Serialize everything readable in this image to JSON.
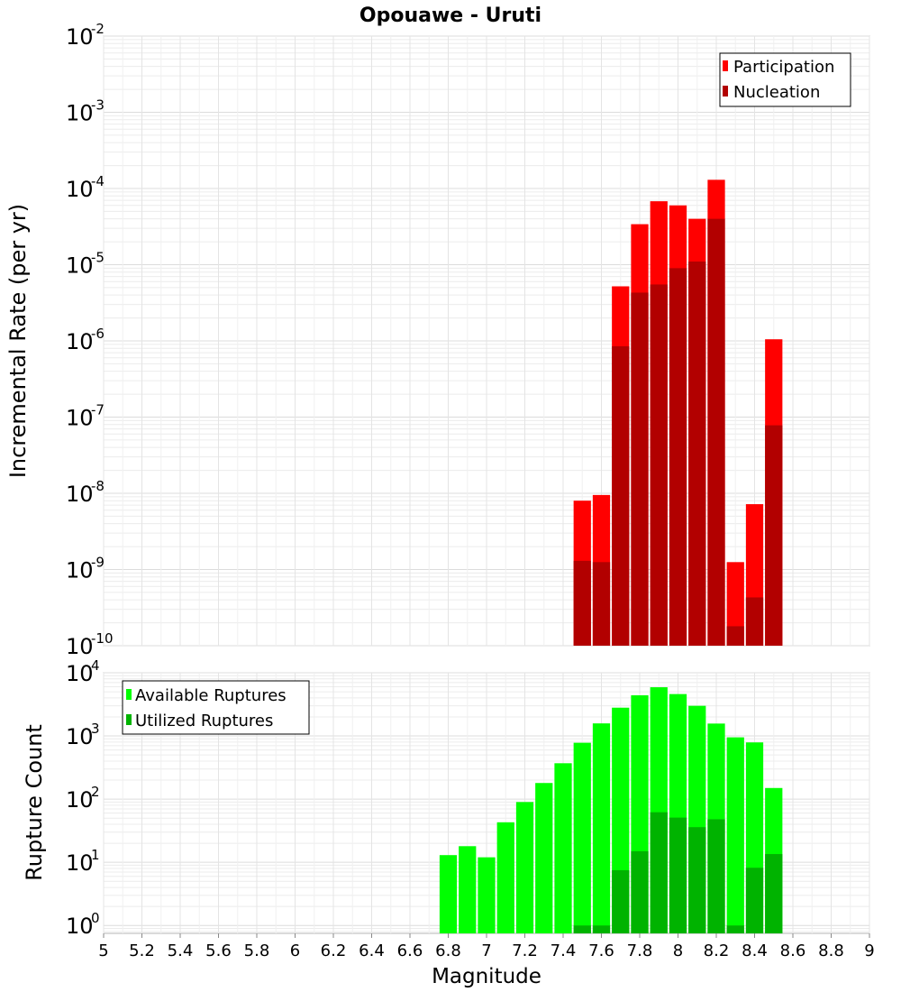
{
  "chart_data": [
    {
      "type": "bar",
      "title": "Opouawe - Uruti",
      "ylabel": "Incremental Rate (per yr)",
      "yscale": "log",
      "ylim": [
        1e-10,
        0.01
      ],
      "y_tick_exponents": [
        "-2",
        "-3",
        "-4",
        "-5",
        "-6",
        "-7",
        "-8",
        "-9",
        "-10"
      ],
      "y_tick_base": "10",
      "legend_position": "top-right",
      "x": [
        7.5,
        7.6,
        7.7,
        7.8,
        7.9,
        8.0,
        8.1,
        8.2,
        8.3,
        8.4,
        8.5
      ],
      "series": [
        {
          "name": "Participation",
          "color": "#ff0000",
          "values": [
            8e-09,
            9.5e-09,
            5.2e-06,
            3.4e-05,
            6.8e-05,
            6e-05,
            4e-05,
            0.00013,
            1.25e-09,
            7.2e-09,
            1.05e-06
          ]
        },
        {
          "name": "Nucleation",
          "color": "#b20000",
          "values": [
            1.3e-09,
            1.25e-09,
            8.5e-07,
            4.3e-06,
            5.5e-06,
            9e-06,
            1.1e-05,
            4e-05,
            1.8e-10,
            4.3e-10,
            7.8e-08
          ]
        }
      ]
    },
    {
      "type": "bar",
      "ylabel": "Rupture Count",
      "xlabel": "Magnitude",
      "yscale": "log",
      "ylim": [
        0.75,
        10000
      ],
      "y_tick_exponents": [
        "4",
        "3",
        "2",
        "1",
        "0"
      ],
      "y_tick_base": "10",
      "legend_position": "top-left",
      "xlim": [
        5,
        9
      ],
      "x_ticks": [
        "5",
        "5.2",
        "5.4",
        "5.6",
        "5.8",
        "6",
        "6.2",
        "6.4",
        "6.6",
        "6.8",
        "7",
        "7.2",
        "7.4",
        "7.6",
        "7.8",
        "8",
        "8.2",
        "8.4",
        "8.6",
        "8.8",
        "9"
      ],
      "x": [
        6.8,
        6.9,
        7.0,
        7.1,
        7.2,
        7.3,
        7.4,
        7.5,
        7.6,
        7.7,
        7.8,
        7.9,
        8.0,
        8.1,
        8.2,
        8.3,
        8.4,
        8.5
      ],
      "series": [
        {
          "name": "Available Ruptures",
          "color": "#00ff00",
          "values": [
            13,
            18,
            12,
            43,
            90,
            180,
            370,
            780,
            1580,
            2800,
            4400,
            5900,
            4600,
            3000,
            1570,
            950,
            790,
            150
          ]
        },
        {
          "name": "Utilized Ruptures",
          "color": "#00b300",
          "values": [
            null,
            null,
            null,
            null,
            null,
            null,
            null,
            1,
            1,
            7.5,
            15,
            62,
            51,
            36,
            48,
            1,
            8.2,
            13.5
          ]
        }
      ]
    }
  ]
}
